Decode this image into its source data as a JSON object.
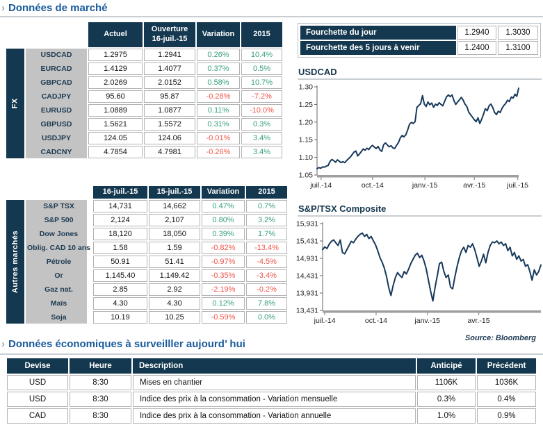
{
  "colors": {
    "navy": "#14384f",
    "green": "#36a07b",
    "red": "#f2564c",
    "title_blue": "#1a5b9b",
    "label_gray": "#c3c3c3",
    "chart_line": "#17395b"
  },
  "section_market": {
    "title": "Données de marché"
  },
  "fx_table": {
    "group_label": "FX",
    "headers": {
      "col1": "Actuel",
      "col2a": "Ouverture",
      "col2b": "16-juil.-15",
      "col3": "Variation",
      "col4": "2015"
    },
    "rows": [
      {
        "label": "USDCAD",
        "actual": "1.2975",
        "open": "1.2941",
        "variation": "0.26%",
        "ytd": "10.4%"
      },
      {
        "label": "EURCAD",
        "actual": "1.4129",
        "open": "1.4077",
        "variation": "0.37%",
        "ytd": "0.5%"
      },
      {
        "label": "GBPCAD",
        "actual": "2.0269",
        "open": "2.0152",
        "variation": "0.58%",
        "ytd": "10.7%"
      },
      {
        "label": "CADJPY",
        "actual": "95.60",
        "open": "95.87",
        "variation": "-0.28%",
        "ytd": "-7.2%"
      },
      {
        "label": "EURUSD",
        "actual": "1.0889",
        "open": "1.0877",
        "variation": "0.11%",
        "ytd": "-10.0%"
      },
      {
        "label": "GBPUSD",
        "actual": "1.5621",
        "open": "1.5572",
        "variation": "0.31%",
        "ytd": "0.3%"
      },
      {
        "label": "USDJPY",
        "actual": "124.05",
        "open": "124.06",
        "variation": "-0.01%",
        "ytd": "3.4%"
      },
      {
        "label": "CADCNY",
        "actual": "4.7854",
        "open": "4.7981",
        "variation": "-0.26%",
        "ytd": "3.4%"
      }
    ]
  },
  "ranges": {
    "rows": [
      {
        "label": "Fourchette du jour",
        "low": "1.2940",
        "high": "1.3030"
      },
      {
        "label": "Fourchette des 5 jours à venir",
        "low": "1.2400",
        "high": "1.3100"
      }
    ]
  },
  "markets_table": {
    "group_label": "Autres marchés",
    "headers": {
      "col1": "16-juil.-15",
      "col2": "15-juil.-15",
      "col3": "Variation",
      "col4": "2015"
    },
    "rows": [
      {
        "label": "S&P TSX",
        "day1": "14,731",
        "day2": "14,662",
        "variation": "0.47%",
        "ytd": "0.7%"
      },
      {
        "label": "S&P 500",
        "day1": "2,124",
        "day2": "2,107",
        "variation": "0.80%",
        "ytd": "3.2%"
      },
      {
        "label": "Dow Jones",
        "day1": "18,120",
        "day2": "18,050",
        "variation": "0.39%",
        "ytd": "1.7%"
      },
      {
        "label": "Oblig. CAD 10 ans",
        "day1": "1.58",
        "day2": "1.59",
        "variation": "-0.82%",
        "ytd": "-13.4%"
      },
      {
        "label": "Pétrole",
        "day1": "50.91",
        "day2": "51.41",
        "variation": "-0.97%",
        "ytd": "-4.5%"
      },
      {
        "label": "Or",
        "day1": "1,145.40",
        "day2": "1,149.42",
        "variation": "-0.35%",
        "ytd": "-3.4%"
      },
      {
        "label": "Gaz nat.",
        "day1": "2.85",
        "day2": "2.92",
        "variation": "-2.19%",
        "ytd": "-0.2%"
      },
      {
        "label": "Maïs",
        "day1": "4.30",
        "day2": "4.30",
        "variation": "0.12%",
        "ytd": "7.8%"
      },
      {
        "label": "Soja",
        "day1": "10.19",
        "day2": "10.25",
        "variation": "-0.59%",
        "ytd": "0.0%"
      }
    ]
  },
  "chart_data": [
    {
      "type": "line",
      "title": "USDCAD",
      "xlabel": "",
      "ylabel": "",
      "ylim": [
        1.05,
        1.3
      ],
      "grid": false,
      "legend": "none",
      "y_ticks": [
        {
          "value": 1.05,
          "label": "1.05"
        },
        {
          "value": 1.1,
          "label": "1.10"
        },
        {
          "value": 1.15,
          "label": "1.15"
        },
        {
          "value": 1.2,
          "label": "1.20"
        },
        {
          "value": 1.25,
          "label": "1.25"
        },
        {
          "value": 1.3,
          "label": "1.30"
        }
      ],
      "x_ticks": [
        {
          "pos": 0.02,
          "label": "juil.-14"
        },
        {
          "pos": 0.275,
          "label": "oct.-14"
        },
        {
          "pos": 0.535,
          "label": "janv.-15"
        },
        {
          "pos": 0.78,
          "label": "avr.-15"
        },
        {
          "pos": 0.995,
          "label": "juil.-15"
        }
      ],
      "series": [
        {
          "name": "USDCAD",
          "values": [
            1.068,
            1.071,
            1.069,
            1.073,
            1.072,
            1.075,
            1.077,
            1.088,
            1.094,
            1.091,
            1.086,
            1.093,
            1.089,
            1.085,
            1.088,
            1.085,
            1.091,
            1.096,
            1.101,
            1.108,
            1.115,
            1.118,
            1.104,
            1.11,
            1.117,
            1.124,
            1.12,
            1.126,
            1.122,
            1.13,
            1.134,
            1.129,
            1.125,
            1.131,
            1.121,
            1.117,
            1.136,
            1.141,
            1.135,
            1.13,
            1.133,
            1.127,
            1.125,
            1.134,
            1.142,
            1.155,
            1.162,
            1.158,
            1.164,
            1.178,
            1.194,
            1.199,
            1.196,
            1.201,
            1.242,
            1.247,
            1.252,
            1.275,
            1.251,
            1.244,
            1.257,
            1.249,
            1.254,
            1.242,
            1.251,
            1.247,
            1.255,
            1.25,
            1.246,
            1.259,
            1.271,
            1.277,
            1.272,
            1.277,
            1.261,
            1.25,
            1.257,
            1.263,
            1.27,
            1.262,
            1.251,
            1.244,
            1.228,
            1.221,
            1.214,
            1.207,
            1.201,
            1.212,
            1.196,
            1.208,
            1.222,
            1.238,
            1.232,
            1.246,
            1.251,
            1.241,
            1.227,
            1.221,
            1.231,
            1.227,
            1.239,
            1.247,
            1.253,
            1.262,
            1.258,
            1.271,
            1.268,
            1.279,
            1.273,
            1.296
          ]
        }
      ]
    },
    {
      "type": "line",
      "title": "S&P/TSX Composite",
      "xlabel": "",
      "ylabel": "",
      "ylim": [
        13431,
        15931
      ],
      "grid": false,
      "legend": "none",
      "y_ticks": [
        {
          "value": 13431,
          "label": "13,431"
        },
        {
          "value": 13931,
          "label": "13,931"
        },
        {
          "value": 14431,
          "label": "14,431"
        },
        {
          "value": 14931,
          "label": "14,931"
        },
        {
          "value": 15431,
          "label": "15,431"
        },
        {
          "value": 15931,
          "label": "15,931"
        }
      ],
      "x_ticks": [
        {
          "pos": 0.01,
          "label": "juil.-14"
        },
        {
          "pos": 0.245,
          "label": "oct.-14"
        },
        {
          "pos": 0.48,
          "label": "janv.-15"
        },
        {
          "pos": 0.715,
          "label": "avr.-15"
        }
      ],
      "series": [
        {
          "name": "S&P/TSX Composite",
          "values": [
            15180,
            15260,
            15210,
            15340,
            15420,
            15460,
            15380,
            15300,
            15460,
            15100,
            15060,
            15180,
            15300,
            15420,
            15380,
            15480,
            15560,
            15620,
            15660,
            15560,
            15620,
            15500,
            15560,
            15440,
            15320,
            15150,
            14950,
            14820,
            14650,
            14400,
            14080,
            13860,
            14150,
            14380,
            14520,
            14440,
            14380,
            14550,
            14480,
            14620,
            14780,
            14900,
            15020,
            15080,
            14950,
            15020,
            14850,
            14620,
            14300,
            13980,
            13700,
            14100,
            14420,
            14780,
            14820,
            14550,
            14380,
            14450,
            14100,
            14050,
            14400,
            14700,
            14950,
            15150,
            15250,
            15100,
            15300,
            15250,
            15350,
            15180,
            14950,
            14700,
            14850,
            15050,
            14800,
            15100,
            15300,
            15400,
            15380,
            15430,
            15350,
            15400,
            15300,
            15350,
            15150,
            15250,
            15000,
            15100,
            14900,
            15000,
            14850,
            14900,
            14700,
            14750,
            14550,
            14300,
            14600,
            14450,
            14550,
            14740
          ]
        }
      ]
    }
  ],
  "source_note": "Source: Bloomberg",
  "section_econ": {
    "title": "Données économiques à surveilller aujourd’ hui"
  },
  "econ_table": {
    "headers": {
      "currency": "Devise",
      "time": "Heure",
      "description": "Description",
      "expected": "Anticipé",
      "previous": "Précédent"
    },
    "rows": [
      {
        "currency": "USD",
        "time": "8:30",
        "description": "Mises en chantier",
        "expected": "1106K",
        "previous": "1036K"
      },
      {
        "currency": "USD",
        "time": "8:30",
        "description": "Indice des prix à la consommation - Variation mensuelle",
        "expected": "0.3%",
        "previous": "0.4%"
      },
      {
        "currency": "CAD",
        "time": "8:30",
        "description": "Indice des prix à la consommation - Variation annuelle",
        "expected": "1.0%",
        "previous": "0.9%"
      }
    ]
  }
}
